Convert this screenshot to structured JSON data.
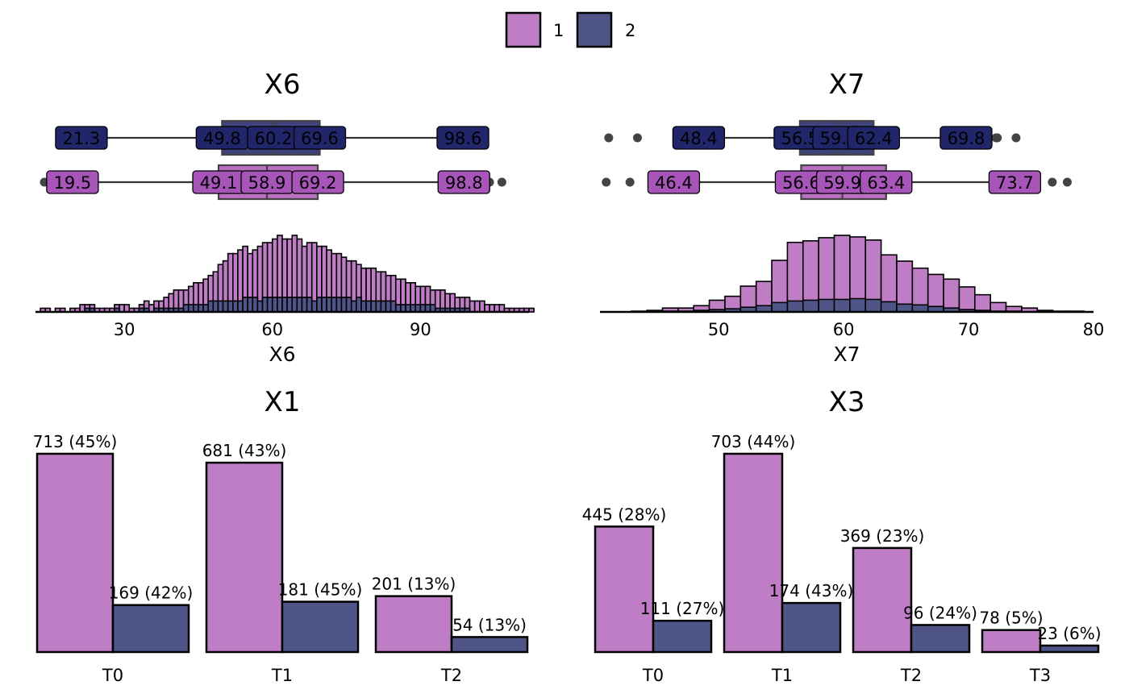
{
  "colors": {
    "g1": "#bf7dc5",
    "g2": "#4f5589",
    "g1_label": "#a855ba",
    "g2_label": "#21256a",
    "box1": "#ba70c2",
    "box2": "#3e437c",
    "outline": "#000000"
  },
  "legend": {
    "position": "top",
    "items": [
      {
        "label": "1",
        "color": "#bf7dc5"
      },
      {
        "label": "2",
        "color": "#4f5589"
      }
    ]
  },
  "chart_data": [
    {
      "type": "histogram",
      "title": "X6",
      "xlabel": "X6",
      "xlim": [
        12,
        112
      ],
      "xticks": [
        30,
        60,
        90
      ],
      "grid": false,
      "boxplots": [
        {
          "group": "2",
          "whisker_low": 21.3,
          "q1": 49.8,
          "median": 60.2,
          "q3": 69.6,
          "whisker_high": 98.6,
          "outliers": []
        },
        {
          "group": "1",
          "whisker_low": 19.5,
          "q1": 49.1,
          "median": 58.9,
          "q3": 69.2,
          "whisker_high": 98.8,
          "outliers": [
            13.8,
            100.5,
            101.5,
            102.2,
            104,
            106.5
          ]
        }
      ],
      "bin_start": 13,
      "bin_width": 1,
      "series": [
        {
          "group": "1",
          "counts": [
            1,
            1,
            0,
            1,
            1,
            0,
            1,
            1,
            2,
            2,
            2,
            1,
            1,
            1,
            1,
            2,
            2,
            2,
            1,
            1,
            2,
            3,
            2,
            3,
            3,
            4,
            5,
            6,
            6,
            6,
            7,
            8,
            8,
            9,
            10,
            11,
            13,
            14,
            16,
            16,
            17,
            18,
            16,
            17,
            18,
            19,
            19,
            20,
            21,
            20,
            20,
            21,
            20,
            18,
            19,
            19,
            18,
            18,
            17,
            16,
            16,
            15,
            14,
            14,
            13,
            12,
            12,
            12,
            11,
            11,
            10,
            10,
            9,
            9,
            8,
            8,
            7,
            7,
            7,
            6,
            6,
            6,
            5,
            5,
            4,
            4,
            4,
            3,
            3,
            3,
            2,
            2,
            2,
            2,
            1,
            1,
            1,
            1,
            1,
            1
          ]
        },
        {
          "group": "2",
          "counts": [
            0,
            0,
            0,
            0,
            0,
            0,
            0,
            0,
            0,
            1,
            1,
            0,
            0,
            0,
            0,
            1,
            0,
            0,
            0,
            0,
            1,
            1,
            0,
            1,
            1,
            1,
            1,
            1,
            1,
            2,
            2,
            2,
            2,
            2,
            3,
            3,
            3,
            3,
            3,
            3,
            3,
            4,
            4,
            4,
            3,
            4,
            4,
            4,
            4,
            4,
            4,
            4,
            4,
            4,
            4,
            3,
            4,
            4,
            4,
            4,
            4,
            4,
            4,
            3,
            4,
            3,
            3,
            3,
            3,
            3,
            3,
            3,
            2,
            2,
            2,
            2,
            2,
            2,
            2,
            2,
            1,
            1,
            1,
            1,
            1,
            1,
            1,
            0,
            0,
            0,
            0,
            0,
            0,
            0,
            0,
            0,
            0,
            0,
            0,
            0
          ]
        }
      ]
    },
    {
      "type": "histogram",
      "title": "X7",
      "xlabel": "X7",
      "xlim": [
        40.5,
        80
      ],
      "xticks": [
        50,
        60,
        70,
        80
      ],
      "grid": false,
      "boxplots": [
        {
          "group": "2",
          "whisker_low": 48.4,
          "q1": 56.5,
          "median": 59.6,
          "q3": 62.4,
          "whisker_high": 69.8,
          "outliers": [
            41.2,
            43.5,
            71.0,
            72.2,
            72.3,
            73.8
          ]
        },
        {
          "group": "1",
          "whisker_low": 46.4,
          "q1": 56.6,
          "median": 59.9,
          "q3": 63.4,
          "whisker_high": 73.7,
          "outliers": [
            41.0,
            42.9,
            76.7,
            77.9
          ]
        }
      ],
      "bin_start": 40.5,
      "bin_width": 1.25,
      "series": [
        {
          "group": "1",
          "counts": [
            0,
            0,
            1,
            2,
            5,
            5,
            8,
            15,
            20,
            33,
            39,
            66,
            89,
            91,
            95,
            98,
            96,
            92,
            73,
            65,
            56,
            48,
            42,
            32,
            22,
            12,
            7,
            5,
            2,
            1,
            1,
            0
          ]
        },
        {
          "group": "2",
          "counts": [
            0,
            0,
            0,
            0,
            1,
            1,
            2,
            3,
            4,
            6,
            8,
            12,
            14,
            15,
            16,
            16,
            17,
            16,
            13,
            10,
            9,
            7,
            5,
            3,
            2,
            1,
            1,
            0,
            0,
            0,
            0,
            0
          ]
        }
      ]
    },
    {
      "type": "bar",
      "title": "X1",
      "categories": [
        "T0",
        "T1",
        "T2"
      ],
      "series": [
        {
          "name": "1",
          "values": [
            713,
            681,
            201
          ],
          "labels": [
            "713 (45%)",
            "681 (43%)",
            "201 (13%)"
          ]
        },
        {
          "name": "2",
          "values": [
            169,
            181,
            54
          ],
          "labels": [
            "169 (42%)",
            "181 (45%)",
            "54 (13%)"
          ]
        }
      ],
      "ylim": [
        0,
        713
      ]
    },
    {
      "type": "bar",
      "title": "X3",
      "categories": [
        "T0",
        "T1",
        "T2",
        "T3"
      ],
      "series": [
        {
          "name": "1",
          "values": [
            445,
            703,
            369,
            78
          ],
          "labels": [
            "445 (28%)",
            "703 (44%)",
            "369 (23%)",
            "78 (5%)"
          ]
        },
        {
          "name": "2",
          "values": [
            111,
            174,
            96,
            23
          ],
          "labels": [
            "111 (27%)",
            "174 (43%)",
            "96 (24%)",
            "23 (6%)"
          ]
        }
      ],
      "ylim": [
        0,
        703
      ]
    }
  ]
}
